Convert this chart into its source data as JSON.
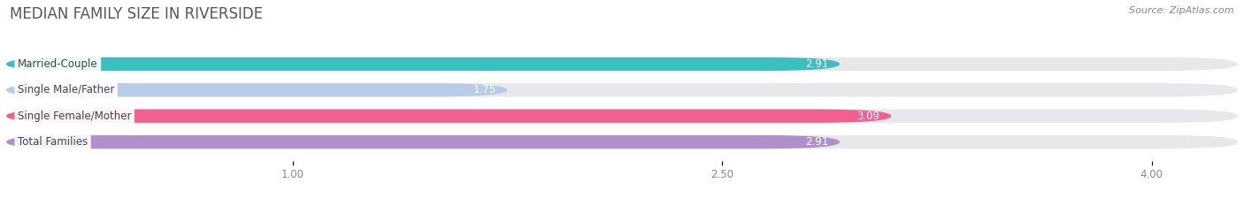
{
  "title": "MEDIAN FAMILY SIZE IN RIVERSIDE",
  "source": "Source: ZipAtlas.com",
  "categories": [
    "Married-Couple",
    "Single Male/Father",
    "Single Female/Mother",
    "Total Families"
  ],
  "values": [
    2.91,
    1.75,
    3.09,
    2.91
  ],
  "bar_colors": [
    "#3bbfbf",
    "#b8cce8",
    "#f06090",
    "#b090cc"
  ],
  "bar_height": 0.52,
  "xmin": 0.0,
  "xmax": 4.3,
  "xlim_display": [
    0.0,
    4.3
  ],
  "xticks": [
    1.0,
    2.5,
    4.0
  ],
  "xtick_labels": [
    "1.00",
    "2.50",
    "4.00"
  ],
  "label_fontsize": 8.5,
  "value_fontsize": 8.5,
  "title_fontsize": 12,
  "source_fontsize": 8,
  "background_color": "#ffffff",
  "bar_background_color": "#e8e8ec"
}
